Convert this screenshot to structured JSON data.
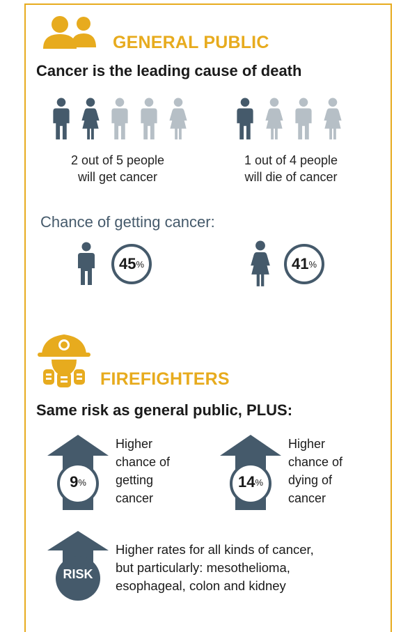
{
  "colors": {
    "gold": "#e7ab1e",
    "slate": "#455a6b",
    "slate_light": "#b6bfc6"
  },
  "general_public": {
    "title": "GENERAL PUBLIC",
    "icon": "people-icon",
    "headline": "Cancer is the leading cause of death",
    "stat_get": {
      "line1": "2 out of 5 people",
      "line2": "will get cancer",
      "highlighted": 2,
      "total": 5
    },
    "stat_die": {
      "line1": "1 out of 4 people",
      "line2": "will die of cancer",
      "highlighted": 1,
      "total": 4
    },
    "chance_heading": "Chance of getting cancer:",
    "male": {
      "icon": "male-icon",
      "value": "45",
      "unit": "%"
    },
    "female": {
      "icon": "female-icon",
      "value": "41",
      "unit": "%"
    }
  },
  "firefighters": {
    "title": "FIREFIGHTERS",
    "icon": "firefighter-icon",
    "headline": "Same risk as general public, PLUS:",
    "getting": {
      "value": "9",
      "unit": "%",
      "lines": [
        "Higher",
        "chance of",
        "getting",
        "cancer"
      ]
    },
    "dying": {
      "value": "14",
      "unit": "%",
      "lines": [
        "Higher",
        "chance of",
        "dying of",
        "cancer"
      ]
    },
    "risk": {
      "badge": "RISK",
      "lines": [
        "Higher rates for all kinds of cancer,",
        "but particularly: mesothelioma,",
        "esophageal, colon and kidney"
      ]
    }
  }
}
